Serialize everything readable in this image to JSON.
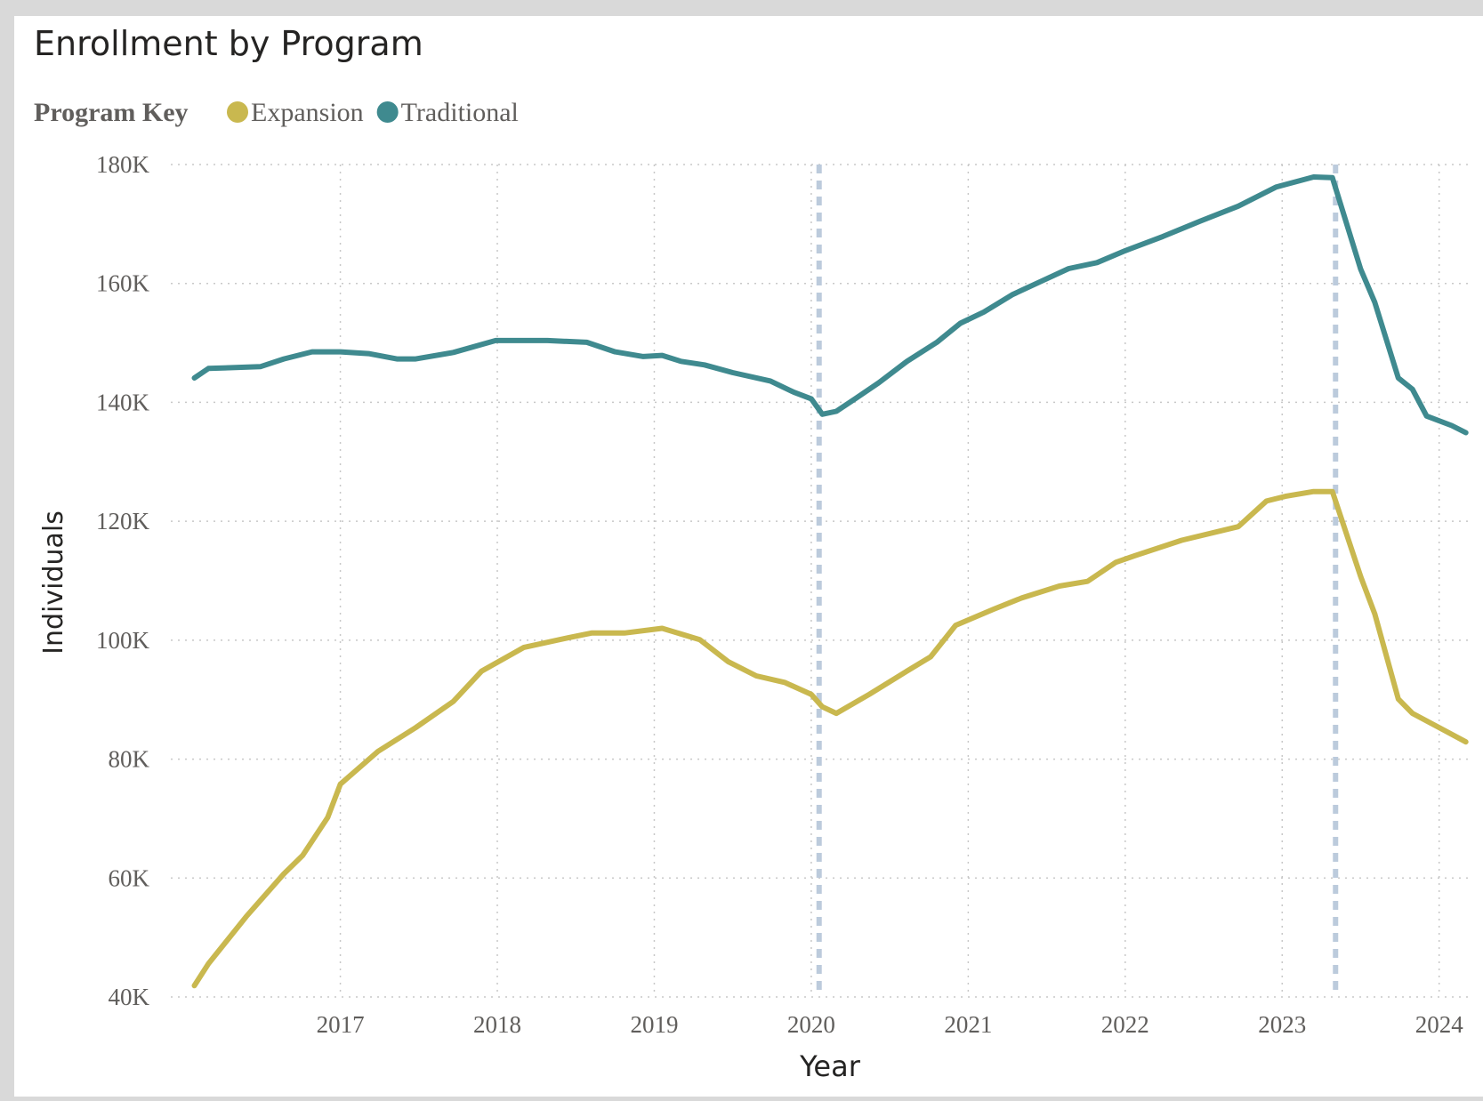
{
  "chart_data": {
    "type": "line",
    "title": "Enrollment by Program",
    "legend_title": "Program Key",
    "x_label": "Year",
    "y_label": "Individuals",
    "xlim": [
      2015.92,
      2024.2
    ],
    "xticks": [
      2017,
      2018,
      2019,
      2020,
      2021,
      2022,
      2023,
      2024
    ],
    "ylim": [
      40,
      180
    ],
    "yticks": [
      {
        "value": 40,
        "label": "40K"
      },
      {
        "value": 60,
        "label": "60K"
      },
      {
        "value": 80,
        "label": "80K"
      },
      {
        "value": 100,
        "label": "100K"
      },
      {
        "value": 120,
        "label": "120K"
      },
      {
        "value": 140,
        "label": "140K"
      },
      {
        "value": 160,
        "label": "160K"
      },
      {
        "value": 180,
        "label": "180K"
      }
    ],
    "grid": true,
    "reference_lines_x": [
      2020.05,
      2023.34
    ],
    "series": [
      {
        "name": "Expansion",
        "color": "#c9b84f",
        "x": [
          2016.07,
          2016.16,
          2016.4,
          2016.64,
          2016.76,
          2016.92,
          2017.0,
          2017.24,
          2017.48,
          2017.72,
          2017.9,
          2018.17,
          2018.45,
          2018.6,
          2018.81,
          2019.05,
          2019.29,
          2019.47,
          2019.65,
          2019.83,
          2020.0,
          2020.07,
          2020.16,
          2020.37,
          2020.61,
          2020.76,
          2020.92,
          2021.16,
          2021.34,
          2021.58,
          2021.76,
          2021.94,
          2022.06,
          2022.36,
          2022.72,
          2022.9,
          2023.02,
          2023.2,
          2023.32,
          2023.5,
          2023.59,
          2023.74,
          2023.83,
          2024.0,
          2024.17
        ],
        "values": [
          41.9,
          45.6,
          53.5,
          60.7,
          63.8,
          70.2,
          75.8,
          81.3,
          85.3,
          89.7,
          94.8,
          98.8,
          100.4,
          101.2,
          101.2,
          102.0,
          100.1,
          96.4,
          94.0,
          92.9,
          90.9,
          88.8,
          87.7,
          90.9,
          94.8,
          97.2,
          102.5,
          105.2,
          107.1,
          109.1,
          109.9,
          113.1,
          114.2,
          116.8,
          119.1,
          123.4,
          124.2,
          125.0,
          125.0,
          110.7,
          104.4,
          90.1,
          87.7,
          85.3,
          82.9
        ]
      },
      {
        "name": "Traditional",
        "color": "#3f8a8f",
        "x": [
          2016.07,
          2016.16,
          2016.49,
          2016.64,
          2016.82,
          2017.0,
          2017.18,
          2017.36,
          2017.48,
          2017.72,
          2017.99,
          2018.32,
          2018.57,
          2018.75,
          2018.93,
          2019.05,
          2019.17,
          2019.32,
          2019.5,
          2019.74,
          2019.89,
          2020.0,
          2020.07,
          2020.16,
          2020.28,
          2020.43,
          2020.61,
          2020.8,
          2020.95,
          2021.1,
          2021.28,
          2021.46,
          2021.64,
          2021.82,
          2022.0,
          2022.24,
          2022.48,
          2022.72,
          2022.96,
          2023.2,
          2023.32,
          2023.5,
          2023.59,
          2023.74,
          2023.83,
          2023.92,
          2024.08,
          2024.17
        ],
        "values": [
          144.1,
          145.7,
          146.0,
          147.3,
          148.5,
          148.5,
          148.2,
          147.3,
          147.3,
          148.4,
          150.4,
          150.4,
          150.1,
          148.5,
          147.7,
          147.9,
          146.9,
          146.3,
          145.0,
          143.6,
          141.7,
          140.6,
          138.0,
          138.5,
          140.6,
          143.3,
          146.9,
          150.1,
          153.3,
          155.2,
          158.1,
          160.3,
          162.5,
          163.5,
          165.5,
          167.9,
          170.5,
          173.0,
          176.2,
          177.9,
          177.8,
          162.4,
          156.8,
          144.1,
          142.2,
          137.7,
          136.1,
          134.9
        ]
      }
    ]
  }
}
